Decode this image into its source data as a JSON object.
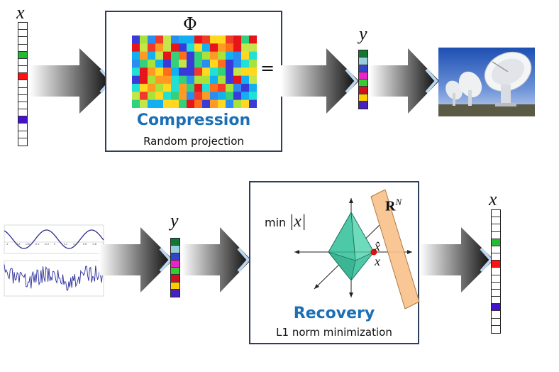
{
  "labels": {
    "x_top": "x",
    "y_top": "y",
    "y_bottom": "y",
    "x_bottom": "x",
    "phi": "Φ",
    "times": "×",
    "equals": "=",
    "min_text": "min",
    "norm_x": "|x|",
    "rn_base": "R",
    "rn_sup": "N",
    "xhat": "x̂",
    "x_point": "x"
  },
  "compression": {
    "title": "Compression",
    "subtitle": "Random projection"
  },
  "recovery": {
    "title": "Recovery",
    "subtitle": "L1 norm minimization"
  },
  "sparse_vector": {
    "cells": [
      "#ffffff",
      "#ffffff",
      "#ffffff",
      "#ffffff",
      "#22bb33",
      "#ffffff",
      "#ffffff",
      "#ff1111",
      "#ffffff",
      "#ffffff",
      "#ffffff",
      "#ffffff",
      "#ffffff",
      "#4411cc",
      "#ffffff",
      "#ffffff",
      "#ffffff"
    ]
  },
  "measurement_vector": {
    "cells": [
      "#117733",
      "#99ccdd",
      "#3344cc",
      "#ee22cc",
      "#33cc33",
      "#cc1122",
      "#ffcc00",
      "#4422bb"
    ]
  },
  "matrix_palette": [
    "#e8141c",
    "#ff6f1a",
    "#ffd81f",
    "#a9e33a",
    "#33d27a",
    "#21e0d6",
    "#2b8df0",
    "#3a3ad8",
    "#c4e64a",
    "#ff9b23",
    "#12b0f0",
    "#f23a2a"
  ],
  "colors": {
    "accent_blue": "#1a6fb5",
    "panel_border": "#2e3f5c",
    "plane_fill": "#f7c28c",
    "octahedron": "#4ec9a8",
    "point_red": "#dd1111"
  },
  "signal_plot": {
    "top_ticks_x": [
      "-1",
      "-0.8",
      "-0.6",
      "-0.4",
      "-0.2",
      "0",
      "0.2",
      "0.4",
      "0.6",
      "0.8",
      "1"
    ],
    "bottom_label": ""
  }
}
